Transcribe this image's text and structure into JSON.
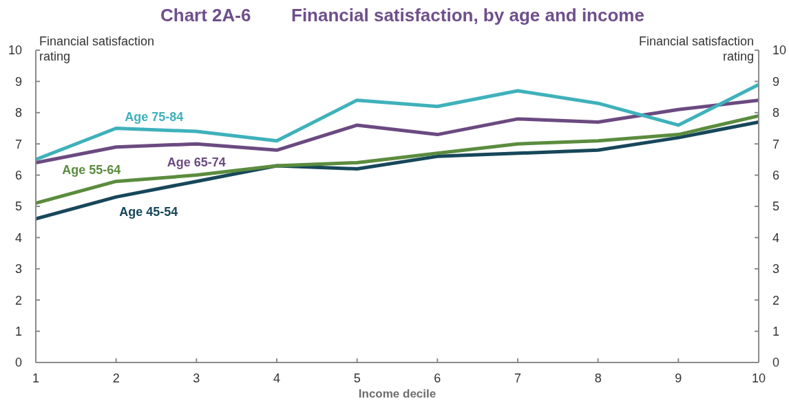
{
  "chart_data": {
    "type": "line",
    "title": "Chart 2A-6",
    "subtitle": "Financial satisfaction, by age and income",
    "xlabel": "Income decile",
    "ylabel": "Financial satisfaction rating",
    "y2label": "Financial satisfaction rating",
    "x": [
      1,
      2,
      3,
      4,
      5,
      6,
      7,
      8,
      9,
      10
    ],
    "series": [
      {
        "name": "Age 45-54",
        "color": "#17475a",
        "values": [
          4.6,
          5.3,
          5.8,
          6.3,
          6.2,
          6.6,
          6.7,
          6.8,
          7.2,
          7.7
        ]
      },
      {
        "name": "Age 55-64",
        "color": "#5b8c3e",
        "values": [
          5.1,
          5.8,
          6.0,
          6.3,
          6.4,
          6.7,
          7.0,
          7.1,
          7.3,
          7.9
        ]
      },
      {
        "name": "Age 65-74",
        "color": "#6b4a80",
        "values": [
          6.4,
          6.9,
          7.0,
          6.8,
          7.6,
          7.3,
          7.8,
          7.7,
          8.1,
          8.4
        ]
      },
      {
        "name": "Age 75-84",
        "color": "#3fb1bb",
        "values": [
          6.5,
          7.5,
          7.4,
          7.1,
          8.4,
          8.2,
          8.7,
          8.3,
          7.6,
          8.9
        ]
      }
    ],
    "xlim": [
      1,
      10
    ],
    "xticks": [
      1,
      2,
      3,
      4,
      5,
      6,
      7,
      8,
      9,
      10
    ],
    "ylim": [
      0,
      10
    ],
    "yticks": [
      0,
      1,
      2,
      3,
      4,
      5,
      6,
      7,
      8,
      9,
      10
    ],
    "y2lim": [
      0,
      10
    ],
    "y2ticks": [
      0,
      1,
      2,
      3,
      4,
      5,
      6,
      7,
      8,
      9,
      10
    ],
    "line_style": "solid"
  }
}
